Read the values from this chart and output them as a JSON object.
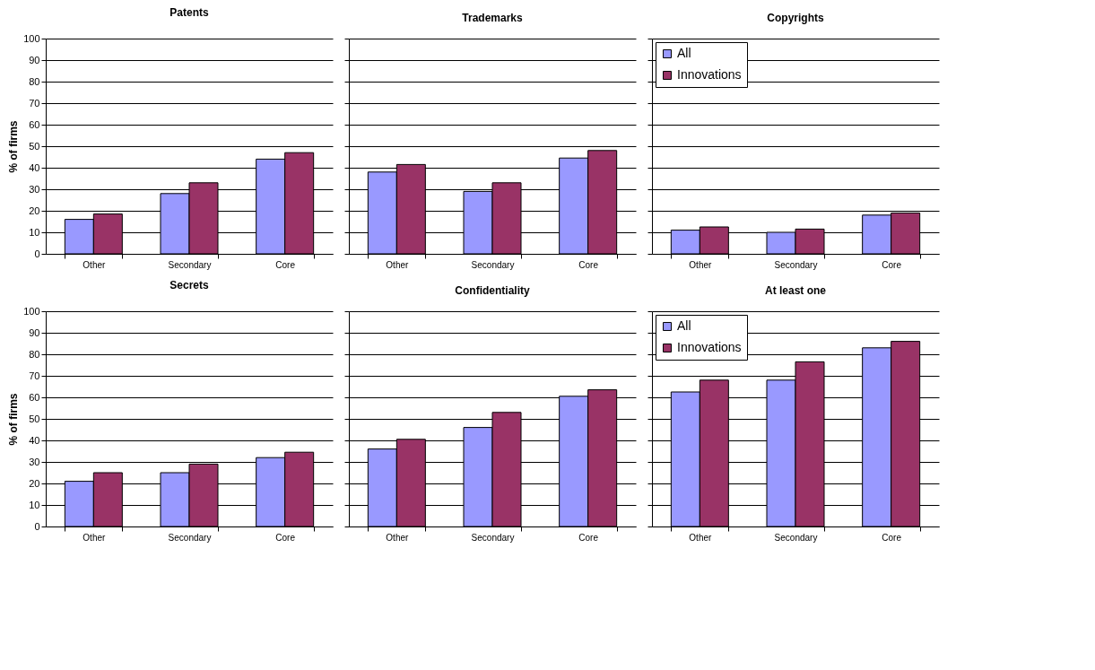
{
  "chart_data": [
    {
      "type": "bar",
      "title": "Patents",
      "ylabel": "% of firms",
      "categories": [
        "Other",
        "Secondary",
        "Core"
      ],
      "ylim": [
        0,
        100
      ],
      "yticks": [
        0,
        10,
        20,
        30,
        40,
        50,
        60,
        70,
        80,
        90,
        100
      ],
      "grid": "y",
      "series": [
        {
          "color": "#9999ff",
          "values": [
            16,
            28,
            44
          ]
        },
        {
          "color": "#993366",
          "values": [
            18.5,
            33,
            47
          ]
        }
      ]
    },
    {
      "type": "bar",
      "title": "Trademarks",
      "categories": [
        "Other",
        "Secondary",
        "Core"
      ],
      "ylim": [
        0,
        100
      ],
      "yticks": [
        0,
        10,
        20,
        30,
        40,
        50,
        60,
        70,
        80,
        90,
        100
      ],
      "grid": "y",
      "tick_labels": "x",
      "series": [
        {
          "color": "#9999ff",
          "values": [
            38,
            29,
            44.5
          ]
        },
        {
          "color": "#993366",
          "values": [
            41.5,
            33,
            48
          ]
        }
      ]
    },
    {
      "type": "bar",
      "title": "Copyrights",
      "categories": [
        "Other",
        "Secondary",
        "Core"
      ],
      "ylim": [
        0,
        100
      ],
      "yticks": [
        0,
        10,
        20,
        30,
        40,
        50,
        60,
        70,
        80,
        90,
        100
      ],
      "grid": "y",
      "tick_labels": "x",
      "legend": "top left",
      "series": [
        {
          "name": "All",
          "color": "#9999ff",
          "values": [
            11,
            10,
            18
          ]
        },
        {
          "name": "Innovations",
          "color": "#993366",
          "values": [
            12.5,
            11.5,
            19
          ]
        }
      ]
    },
    {
      "type": "bar",
      "title": "Secrets",
      "ylabel": "% of firms",
      "categories": [
        "Other",
        "Secondary",
        "Core"
      ],
      "ylim": [
        0,
        100
      ],
      "yticks": [
        0,
        10,
        20,
        30,
        40,
        50,
        60,
        70,
        80,
        90,
        100
      ],
      "grid": "y",
      "series": [
        {
          "color": "#9999ff",
          "values": [
            21,
            25,
            32
          ]
        },
        {
          "color": "#993366",
          "values": [
            25,
            29,
            34.5
          ]
        }
      ]
    },
    {
      "type": "bar",
      "title": "Confidentiality",
      "categories": [
        "Other",
        "Secondary",
        "Core"
      ],
      "ylim": [
        0,
        100
      ],
      "yticks": [
        0,
        10,
        20,
        30,
        40,
        50,
        60,
        70,
        80,
        90,
        100
      ],
      "grid": "y",
      "tick_labels": "x",
      "series": [
        {
          "color": "#9999ff",
          "values": [
            36,
            46,
            60.5
          ]
        },
        {
          "color": "#993366",
          "values": [
            40.5,
            53,
            63.5
          ]
        }
      ]
    },
    {
      "type": "bar",
      "title": "At least one",
      "categories": [
        "Other",
        "Secondary",
        "Core"
      ],
      "ylim": [
        0,
        100
      ],
      "yticks": [
        0,
        10,
        20,
        30,
        40,
        50,
        60,
        70,
        80,
        90,
        100
      ],
      "grid": "y",
      "tick_labels": "x",
      "legend": "top left",
      "series": [
        {
          "name": "All",
          "color": "#9999ff",
          "values": [
            62.5,
            68,
            83
          ]
        },
        {
          "name": "Innovations",
          "color": "#993366",
          "values": [
            68,
            76.5,
            86
          ]
        }
      ]
    }
  ]
}
